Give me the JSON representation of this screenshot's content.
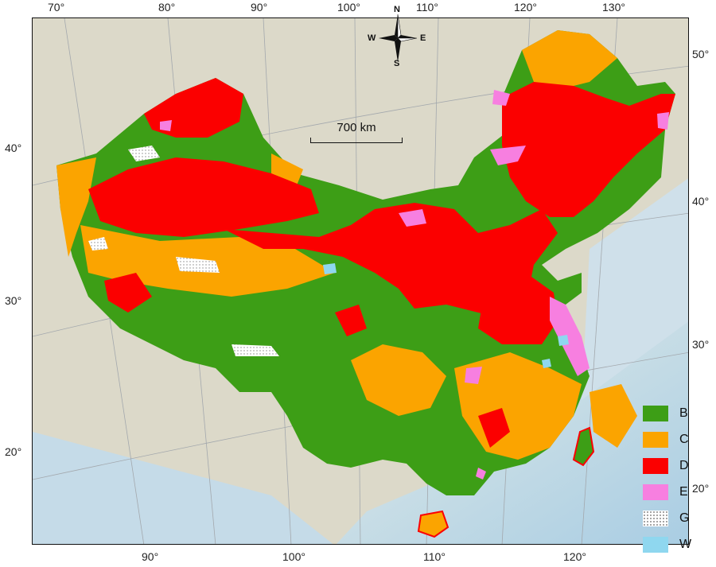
{
  "axes": {
    "top_lon": [
      "70°",
      "80°",
      "90°",
      "100°",
      "110°",
      "120°",
      "130°"
    ],
    "bottom_lon": [
      "90°",
      "100°",
      "110°",
      "120°"
    ],
    "left_lat": [
      "40°",
      "30°",
      "20°"
    ],
    "right_lat": [
      "50°",
      "40°",
      "30°",
      "20°"
    ]
  },
  "scale_bar": {
    "label": "700 km"
  },
  "compass": {
    "n": "N",
    "s": "S",
    "e": "E",
    "w": "W"
  },
  "legend": [
    {
      "label": "B",
      "color": "#3d9e16"
    },
    {
      "label": "C",
      "color": "#fba400"
    },
    {
      "label": "D",
      "color": "#fb0000"
    },
    {
      "label": "E",
      "color": "#f77fe0"
    },
    {
      "label": "G",
      "color": "#ffffff"
    },
    {
      "label": "W",
      "color": "#8fd7ef"
    }
  ],
  "colors": {
    "background_land": "#d9d6c6",
    "background_sea": "#c9dde9",
    "graticule": "#9aa0a6"
  }
}
